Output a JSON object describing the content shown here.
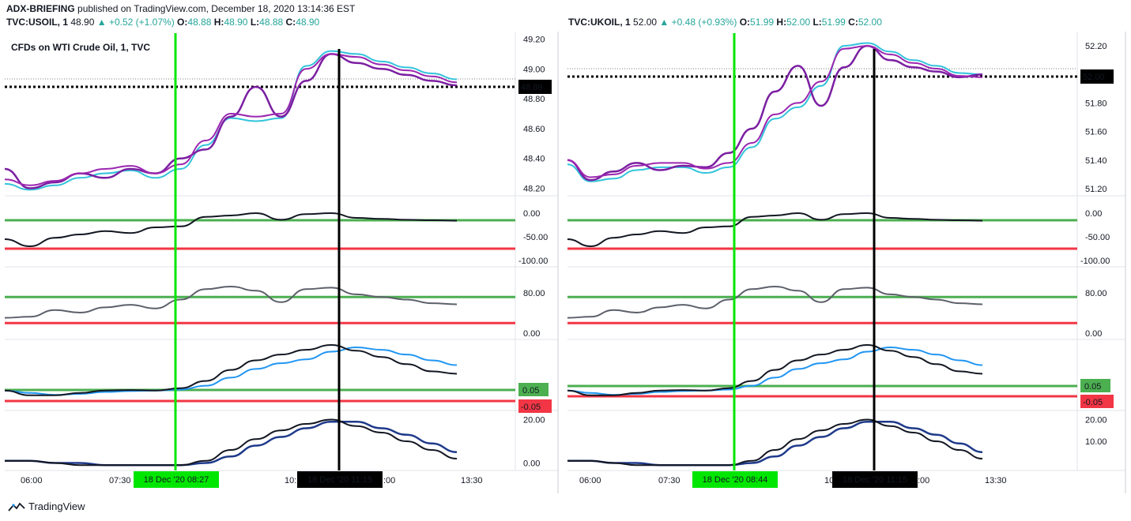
{
  "header": {
    "author": "ADX-BRIEFING",
    "text": "published on TradingView.com, December 18, 2020 13:14:36 EST"
  },
  "footer": {
    "brand": "TradingView"
  },
  "colors": {
    "purple": "#7b1fa2",
    "cyan": "#33c3db",
    "green": "#4caf50",
    "red": "#f23645",
    "black": "#131722",
    "blue": "#2196f3",
    "darkblue": "#1e3a8a",
    "gray": "#5d606b",
    "vgreen": "#00e600"
  },
  "charts": [
    {
      "id": "usoil",
      "symbol": "TVC:USOIL, 1",
      "last": "48.90",
      "change": "+0.52 (+1.07%)",
      "ohlc": {
        "o": "48.88",
        "h": "48.90",
        "l": "48.88",
        "c": "48.90"
      },
      "pane_title": "CFDs on WTI Crude Oil, 1, TVC",
      "price_ticks": [
        "49.20",
        "49.00",
        "48.89",
        "48.80",
        "48.60",
        "48.40",
        "48.20"
      ],
      "price_badge": "48.89",
      "adx_ticks": [
        "0.00",
        "-50.00",
        "-100.00"
      ],
      "rsi_ticks": [
        "80.00",
        "0.00"
      ],
      "osc_badges": [
        "0.05",
        "-0.05"
      ],
      "bottom_ticks": [
        "20.00",
        "0.00"
      ],
      "x_ticks": [
        "06:00",
        "07:30",
        "10:",
        ":00",
        "13:30"
      ],
      "green_marker": "18 Dec '20   08:27",
      "black_marker": "18 Dec '20   11:15"
    },
    {
      "id": "ukoil",
      "symbol": "TVC:UKOIL, 1",
      "last": "52.00",
      "change": "+0.48 (+0.93%)",
      "ohlc": {
        "o": "51.99",
        "h": "52.00",
        "l": "51.99",
        "c": "52.00"
      },
      "pane_title": "",
      "price_ticks": [
        "52.20",
        "52.00",
        "51.80",
        "51.60",
        "51.40",
        "51.20"
      ],
      "price_badge": "52.00",
      "adx_ticks": [
        "0.00",
        "-50.00",
        "-100.00"
      ],
      "rsi_ticks": [
        "80.00",
        "0.00"
      ],
      "osc_badges": [
        "0.05",
        "-0.05"
      ],
      "bottom_ticks": [
        "20.00",
        "10.00"
      ],
      "x_ticks": [
        "06:00",
        "07:30",
        "10:",
        ":00",
        "13:30"
      ],
      "green_marker": "18 Dec '20   08:44",
      "black_marker": "18 Dec '20   11:15"
    }
  ],
  "chart_data": [
    {
      "type": "line",
      "title": "CFDs on WTI Crude Oil, 1, TVC",
      "series": [
        {
          "values": [
            48.33,
            48.2,
            48.24,
            48.3,
            48.27,
            48.33,
            48.3,
            48.4,
            48.46,
            48.68,
            48.88,
            48.68,
            48.92,
            49.1,
            49.04,
            49.0,
            48.96,
            48.92,
            48.89
          ]
        },
        {
          "values": [
            48.26,
            48.22,
            48.25,
            48.3,
            48.33,
            48.35,
            48.3,
            48.36,
            48.52,
            48.7,
            48.68,
            48.7,
            49.0,
            49.1,
            49.08,
            49.03,
            48.99,
            48.95,
            48.91
          ]
        }
      ],
      "ylim": [
        48.15,
        49.25
      ]
    },
    {
      "type": "line",
      "title": "",
      "series": [
        {
          "values": [
            51.4,
            51.26,
            51.32,
            51.38,
            51.33,
            51.36,
            51.35,
            51.45,
            51.62,
            51.88,
            52.06,
            51.78,
            52.05,
            52.2,
            52.1,
            52.05,
            52.02,
            51.98,
            52.0
          ]
        },
        {
          "values": [
            51.4,
            51.28,
            51.3,
            51.36,
            51.38,
            51.38,
            51.34,
            51.38,
            51.52,
            51.72,
            51.8,
            51.95,
            52.18,
            52.2,
            52.14,
            52.08,
            52.04,
            51.99,
            51.98
          ]
        }
      ],
      "ylim": [
        51.15,
        52.3
      ]
    }
  ]
}
